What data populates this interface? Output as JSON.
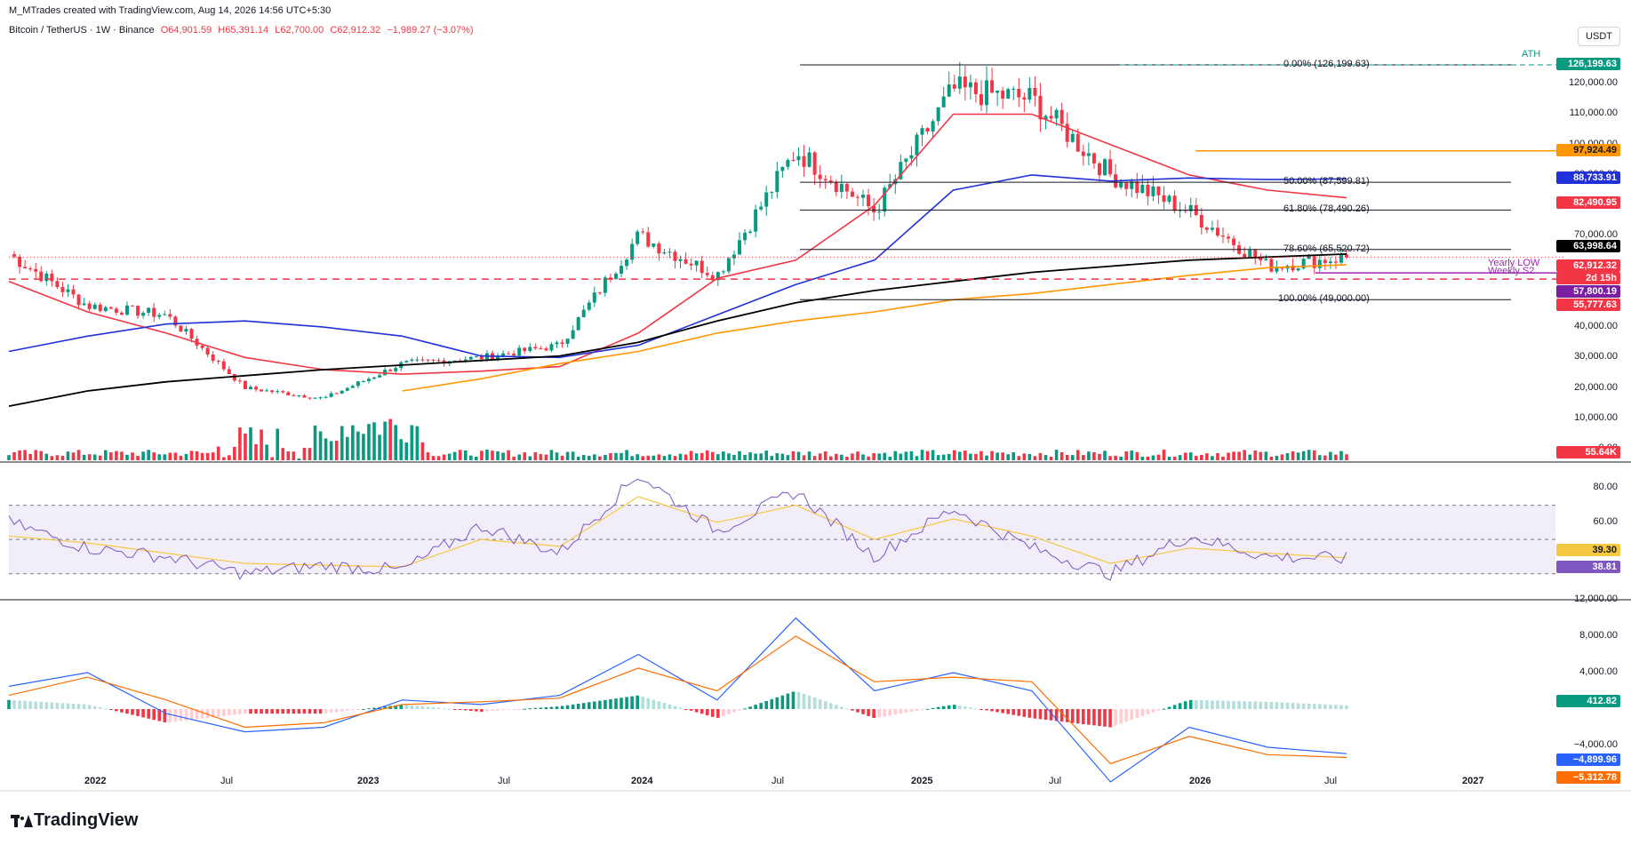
{
  "header": {
    "credit": "M_MTrades created with TradingView.com, Aug 14, 2026 14:56 UTC+5:30",
    "symbol": "Bitcoin / TetherUS · 1W · Binance",
    "open": "O64,901.59",
    "high": "H65,391.14",
    "low": "L62,700.00",
    "close": "C62,912.32",
    "change": "−1,989.27 (−3.07%)"
  },
  "currency_button": "USDT",
  "colors": {
    "up": "#089981",
    "down": "#f23645",
    "ma50": "#f23645",
    "ma100": "#2130d9",
    "ma200": "#000000",
    "trend": "#ff9800",
    "rsi": "#7e57c2",
    "rsi_ma": "#f5c842",
    "macd": "#2962ff",
    "signal": "#ff6d00"
  },
  "price_axis": [
    "120,000.00",
    "110,000.00",
    "100,000.00",
    "90,000.00",
    "70,000.00",
    "40,000.00",
    "30,000.00",
    "20,000.00",
    "10,000.00",
    "0.00"
  ],
  "rsi_axis": [
    "80.00",
    "60.00"
  ],
  "macd_axis": [
    "12,000.00",
    "8,000.00",
    "4,000.00",
    "−4,000.00"
  ],
  "x_labels": [
    "2022",
    "Jul",
    "2023",
    "Jul",
    "2024",
    "Jul",
    "2025",
    "Jul",
    "2026",
    "Jul",
    "2027"
  ],
  "fib_levels": [
    {
      "label": "0.00% (126,199.63)"
    },
    {
      "label": "50.00% (87,599.81)"
    },
    {
      "label": "61.80% (78,490.26)"
    },
    {
      "label": "78.60% (65,520.72)"
    },
    {
      "label": "100.00% (49,000.00)"
    }
  ],
  "annotations": {
    "ath": "ATH",
    "yearly_low": "Yearly LOW",
    "weekly_s2": "Weekly S2"
  },
  "price_tags": {
    "ath": "126,199.63",
    "orange": "97,924.49",
    "ma100": "88,733.91",
    "ma50": "82,490.95",
    "ma200": "63,998.64",
    "last": "62,912.32",
    "countdown": "2d 15h",
    "yearly_low": "57,800.19",
    "weekly_s2": "55,777.63",
    "volume": "55.64K",
    "rsi_ma": "39.30",
    "rsi": "38.81",
    "macd_hist": "412.82",
    "macd": "−4,899.96",
    "signal": "−5,312.78"
  },
  "chart_data": [
    {
      "type": "line",
      "title": "Bitcoin / TetherUS · 1W · Binance",
      "ylabel": "USDT",
      "ylim": [
        0,
        130000
      ],
      "series": [
        {
          "name": "price",
          "x": [
            "2021-11",
            "2022-01",
            "2022-04",
            "2022-06",
            "2022-11",
            "2023-03",
            "2023-07",
            "2023-10",
            "2024-03",
            "2024-08",
            "2024-12",
            "2025-04",
            "2025-08",
            "2025-10",
            "2025-12",
            "2026-04",
            "2026-06",
            "2026-08"
          ],
          "values": [
            64000,
            47000,
            44000,
            20000,
            16500,
            28000,
            30000,
            34000,
            70000,
            57000,
            98000,
            78000,
            118000,
            115000,
            90000,
            78000,
            60000,
            62912
          ]
        },
        {
          "name": "MA50",
          "values": [
            55000,
            45000,
            38000,
            30000,
            26000,
            24500,
            25500,
            27000,
            38000,
            56000,
            62000,
            80000,
            110000,
            110000,
            100000,
            90000,
            85000,
            82491
          ]
        },
        {
          "name": "MA100",
          "values": [
            32000,
            37000,
            41000,
            42000,
            40000,
            37000,
            30500,
            30000,
            34000,
            44000,
            54000,
            62000,
            85000,
            90000,
            88000,
            89000,
            88500,
            88734
          ]
        },
        {
          "name": "MA200",
          "values": [
            14000,
            19000,
            22000,
            24000,
            26000,
            27500,
            29000,
            30500,
            35000,
            42000,
            48000,
            52000,
            55000,
            58000,
            60000,
            62000,
            63000,
            63999
          ]
        },
        {
          "name": "Trendline",
          "values": [
            null,
            null,
            null,
            null,
            null,
            19000,
            23000,
            28000,
            32000,
            38000,
            42000,
            45000,
            49000,
            51000,
            54000,
            57000,
            59500,
            60500
          ]
        }
      ]
    },
    {
      "type": "line",
      "title": "RSI",
      "ylim": [
        20,
        90
      ],
      "series": [
        {
          "name": "RSI",
          "values": [
            60,
            45,
            40,
            30,
            35,
            32,
            58,
            42,
            88,
            55,
            78,
            40,
            68,
            45,
            30,
            52,
            40,
            38.81
          ]
        },
        {
          "name": "RSI MA",
          "values": [
            52,
            48,
            42,
            36,
            35,
            34,
            50,
            46,
            75,
            60,
            70,
            50,
            62,
            52,
            36,
            45,
            42,
            39.3
          ]
        }
      ]
    },
    {
      "type": "bar",
      "title": "MACD",
      "ylim": [
        -8000,
        12000
      ],
      "series": [
        {
          "name": "MACD",
          "values": [
            2500,
            4000,
            -500,
            -2500,
            -2000,
            1000,
            500,
            1500,
            6000,
            1000,
            10000,
            2000,
            4000,
            2000,
            -8000,
            -2000,
            -4200,
            -4899.96
          ]
        },
        {
          "name": "Signal",
          "values": [
            1500,
            3500,
            1000,
            -2000,
            -1500,
            500,
            800,
            1200,
            4500,
            2000,
            8000,
            3000,
            3500,
            3000,
            -6000,
            -3000,
            -5000,
            -5312.78
          ]
        },
        {
          "name": "Histogram",
          "values": [
            1000,
            500,
            -1500,
            -500,
            -500,
            500,
            -300,
            300,
            1500,
            -1000,
            2000,
            -1000,
            500,
            -1000,
            -2000,
            1000,
            800,
            412.82
          ]
        }
      ]
    }
  ]
}
